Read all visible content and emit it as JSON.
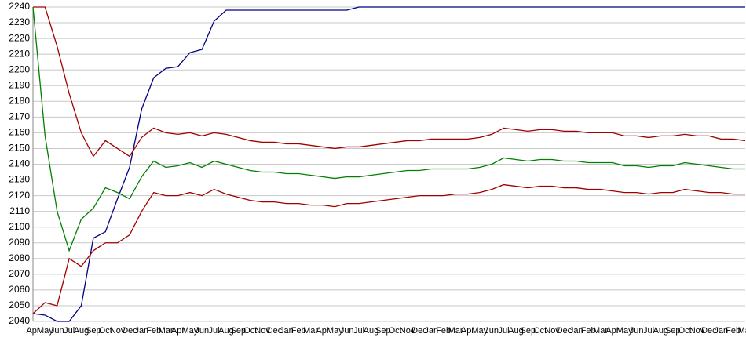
{
  "chart_data": {
    "type": "line",
    "categories": [
      "Apr",
      "May",
      "Jun",
      "Jul",
      "Aug",
      "Sep",
      "Oct",
      "Nov",
      "Dec",
      "Jan",
      "Feb",
      "Mar",
      "Apr",
      "May",
      "Jun",
      "Jul",
      "Aug",
      "Sep",
      "Oct",
      "Nov",
      "Dec",
      "Jan",
      "Feb",
      "Mar",
      "Apr",
      "May",
      "Jun",
      "Jul",
      "Aug",
      "Sep",
      "Oct",
      "Nov",
      "Dec",
      "Jan",
      "Feb",
      "Mar",
      "Apr",
      "May",
      "Jun",
      "Jul",
      "Aug",
      "Sep",
      "Oct",
      "Nov",
      "Dec",
      "Jan",
      "Feb",
      "Mar",
      "Apr",
      "May",
      "Jun",
      "Jul",
      "Aug",
      "Sep",
      "Oct",
      "Nov",
      "Dec",
      "Jan",
      "Feb",
      "Mar"
    ],
    "series": [
      {
        "color": "#000080",
        "values": [
          2045,
          2044,
          2040,
          2040,
          2050,
          2093,
          2097,
          2118,
          2138,
          2175,
          2195,
          2201,
          2202,
          2211,
          2213,
          2231,
          2238,
          2238,
          2238,
          2238,
          2238,
          2238,
          2238,
          2238,
          2238,
          2238,
          2238,
          2240,
          2240,
          2240,
          2240,
          2240,
          2240,
          2240,
          2240,
          2240,
          2240,
          2240,
          2240,
          2240,
          2240,
          2240,
          2240,
          2240,
          2240,
          2240,
          2240,
          2240,
          2240,
          2240,
          2240,
          2240,
          2240,
          2240,
          2240,
          2240,
          2240,
          2240,
          2240,
          2240
        ]
      },
      {
        "color": "#a00000",
        "values": [
          2240,
          2240,
          2215,
          2185,
          2160,
          2145,
          2155,
          2150,
          2145,
          2157,
          2163,
          2160,
          2159,
          2160,
          2158,
          2160,
          2159,
          2157,
          2155,
          2154,
          2154,
          2153,
          2153,
          2152,
          2151,
          2150,
          2151,
          2151,
          2152,
          2153,
          2154,
          2155,
          2155,
          2156,
          2156,
          2156,
          2156,
          2157,
          2159,
          2163,
          2162,
          2161,
          2162,
          2162,
          2161,
          2161,
          2160,
          2160,
          2160,
          2158,
          2158,
          2157,
          2158,
          2158,
          2159,
          2158,
          2158,
          2156,
          2156,
          2155
        ]
      },
      {
        "color": "#008000",
        "values": [
          2240,
          2158,
          2110,
          2085,
          2105,
          2112,
          2125,
          2122,
          2118,
          2132,
          2142,
          2138,
          2139,
          2141,
          2138,
          2142,
          2140,
          2138,
          2136,
          2135,
          2135,
          2134,
          2134,
          2133,
          2132,
          2131,
          2132,
          2132,
          2133,
          2134,
          2135,
          2136,
          2136,
          2137,
          2137,
          2137,
          2137,
          2138,
          2140,
          2144,
          2143,
          2142,
          2143,
          2143,
          2142,
          2142,
          2141,
          2141,
          2141,
          2139,
          2139,
          2138,
          2139,
          2139,
          2141,
          2140,
          2139,
          2138,
          2137,
          2137
        ]
      },
      {
        "color": "#a00000",
        "values": [
          2045,
          2052,
          2050,
          2080,
          2075,
          2085,
          2090,
          2090,
          2095,
          2110,
          2122,
          2120,
          2120,
          2122,
          2120,
          2124,
          2121,
          2119,
          2117,
          2116,
          2116,
          2115,
          2115,
          2114,
          2114,
          2113,
          2115,
          2115,
          2116,
          2117,
          2118,
          2119,
          2120,
          2120,
          2120,
          2121,
          2121,
          2122,
          2124,
          2127,
          2126,
          2125,
          2126,
          2126,
          2125,
          2125,
          2124,
          2124,
          2123,
          2122,
          2122,
          2121,
          2122,
          2122,
          2124,
          2123,
          2122,
          2122,
          2121,
          2121
        ]
      }
    ],
    "ylim": [
      2040,
      2240
    ],
    "yticks": [
      2040,
      2050,
      2060,
      2070,
      2080,
      2090,
      2100,
      2110,
      2120,
      2130,
      2140,
      2150,
      2160,
      2170,
      2180,
      2190,
      2200,
      2210,
      2220,
      2230,
      2240
    ],
    "grid": true
  }
}
